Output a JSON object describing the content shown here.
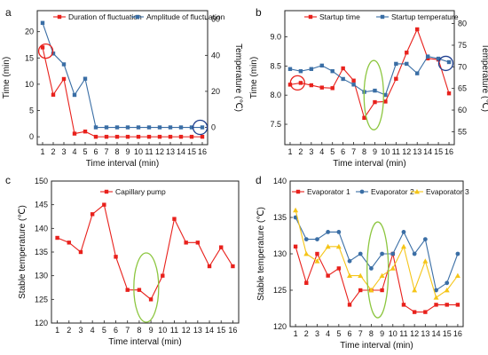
{
  "chart_data": [
    {
      "panel_label": "a",
      "type": "line",
      "xlabel": "Time interval (min)",
      "ylabel": "Time (min)",
      "ylabel_right": "Temperature (℃)",
      "x": [
        1,
        2,
        3,
        4,
        5,
        6,
        7,
        8,
        9,
        10,
        11,
        12,
        13,
        14,
        15,
        16
      ],
      "x_ticks": [
        "1",
        "2",
        "3",
        "4",
        "5",
        "6",
        "7",
        "8",
        "9",
        "10",
        "11",
        "12",
        "13",
        "14",
        "15",
        "16"
      ],
      "ylim": [
        -1.5,
        24
      ],
      "y_ticks": [
        0,
        5,
        10,
        15,
        20
      ],
      "ylim_right": [
        -9.6,
        64.8
      ],
      "y_ticks_right": [
        0,
        20,
        40,
        60
      ],
      "legend_position": "top",
      "series": [
        {
          "name": "Duration of fluctuation",
          "axis": "left",
          "color": "#e8211c",
          "marker": "square",
          "values": [
            17,
            8,
            11,
            0.6,
            1,
            0,
            0,
            0,
            0,
            0,
            0,
            0,
            0,
            0,
            0,
            0
          ]
        },
        {
          "name": "Amplitude of fluctuation",
          "axis": "right",
          "color": "#3a6ea5",
          "marker": "square",
          "values": [
            58,
            41,
            35,
            18,
            27,
            0,
            0,
            0,
            0,
            0,
            0,
            0,
            0,
            0,
            0,
            0
          ]
        }
      ],
      "annotations": [
        {
          "shape": "circle",
          "color": "#e8211c",
          "x": 1.3,
          "y": 16.3,
          "axis": "left"
        },
        {
          "shape": "circle",
          "color": "#1f3f8f",
          "x": 15.8,
          "y": 0,
          "axis": "right"
        }
      ]
    },
    {
      "panel_label": "b",
      "type": "line",
      "xlabel": "Time interval (min)",
      "ylabel": "Time (min)",
      "ylabel_right": "Temperature (℃)",
      "x": [
        1,
        2,
        3,
        4,
        5,
        6,
        7,
        8,
        9,
        10,
        11,
        12,
        13,
        14,
        15,
        16
      ],
      "x_ticks": [
        "1",
        "2",
        "3",
        "4",
        "5",
        "6",
        "7",
        "8",
        "9",
        "10",
        "11",
        "12",
        "13",
        "14",
        "15",
        "16"
      ],
      "ylim": [
        7.15,
        9.45
      ],
      "y_ticks": [
        7.5,
        8.0,
        8.5,
        9.0
      ],
      "ylim_right": [
        52,
        83
      ],
      "y_ticks_right": [
        55,
        60,
        65,
        70,
        75,
        80
      ],
      "legend_position": "top",
      "series": [
        {
          "name": "Startup time",
          "axis": "left",
          "color": "#e8211c",
          "marker": "square",
          "values": [
            8.18,
            8.21,
            8.17,
            8.13,
            8.12,
            8.46,
            8.25,
            7.61,
            7.88,
            7.89,
            8.28,
            8.73,
            9.13,
            8.63,
            8.61,
            8.03
          ]
        },
        {
          "name": "Startup temperature",
          "axis": "right",
          "color": "#3a6ea5",
          "marker": "square",
          "values": [
            69.5,
            69.0,
            69.5,
            70.3,
            69.0,
            67.2,
            65.9,
            64.2,
            64.5,
            63.5,
            70.7,
            70.7,
            68.5,
            72.4,
            71.9,
            71.1
          ]
        }
      ],
      "annotations": [
        {
          "shape": "circle",
          "color": "#e8211c",
          "x": 1.7,
          "y": 8.21,
          "axis": "left"
        },
        {
          "shape": "circle",
          "color": "#1f3f8f",
          "x": 15.7,
          "y": 70.8,
          "axis": "right"
        },
        {
          "shape": "ellipse",
          "color": "#8cc63f",
          "x": 8.9,
          "y": 8.0,
          "axis": "left"
        }
      ]
    },
    {
      "panel_label": "c",
      "type": "line",
      "xlabel": "Time interval (min)",
      "ylabel": "Stable temperature (℃)",
      "x": [
        1,
        2,
        3,
        4,
        5,
        6,
        7,
        8,
        9,
        10,
        11,
        12,
        13,
        14,
        15,
        16
      ],
      "x_ticks": [
        "1",
        "2",
        "3",
        "4",
        "5",
        "6",
        "7",
        "8",
        "9",
        "10",
        "11",
        "12",
        "13",
        "14",
        "15",
        "16"
      ],
      "ylim": [
        120,
        150
      ],
      "y_ticks": [
        120,
        125,
        130,
        135,
        140,
        145,
        150
      ],
      "legend_position": "top-center",
      "series": [
        {
          "name": "Capillary pump",
          "color": "#e8211c",
          "marker": "square",
          "values": [
            138,
            137,
            135,
            143,
            145,
            134,
            127,
            127,
            125,
            130,
            142,
            137,
            137,
            132,
            136,
            132
          ]
        }
      ],
      "annotations": [
        {
          "shape": "ellipse",
          "color": "#8cc63f",
          "x": 8.6,
          "y": 127.5
        }
      ]
    },
    {
      "panel_label": "d",
      "type": "line",
      "xlabel": "Time interval (min)",
      "ylabel": "Stable temperature (℃)",
      "x": [
        1,
        2,
        3,
        4,
        5,
        6,
        7,
        8,
        9,
        10,
        11,
        12,
        13,
        14,
        15,
        16
      ],
      "x_ticks": [
        "1",
        "2",
        "3",
        "4",
        "5",
        "6",
        "7",
        "8",
        "9",
        "10",
        "11",
        "12",
        "13",
        "14",
        "15",
        "16"
      ],
      "ylim": [
        120,
        140
      ],
      "y_ticks": [
        120,
        125,
        130,
        135,
        140
      ],
      "legend_position": "top",
      "series": [
        {
          "name": "Evaporator 1",
          "color": "#e8211c",
          "marker": "square",
          "values": [
            131,
            126,
            130,
            127,
            128,
            123,
            125,
            125,
            125,
            130,
            123,
            122,
            122,
            123,
            123,
            123
          ]
        },
        {
          "name": "Evaporator 2",
          "color": "#3a6ea5",
          "marker": "circle",
          "values": [
            135,
            132,
            132,
            133,
            133,
            129,
            130,
            128,
            130,
            130,
            133,
            130,
            132,
            125,
            126,
            130
          ]
        },
        {
          "name": "Evaporator 3",
          "color": "#f5c518",
          "marker": "triangle",
          "values": [
            136,
            130,
            129,
            131,
            131,
            127,
            127,
            125,
            127,
            128,
            131,
            125,
            129,
            124,
            125,
            127
          ]
        }
      ],
      "annotations": [
        {
          "shape": "ellipse",
          "color": "#8cc63f",
          "x": 8.6,
          "y": 127.8
        }
      ]
    }
  ]
}
